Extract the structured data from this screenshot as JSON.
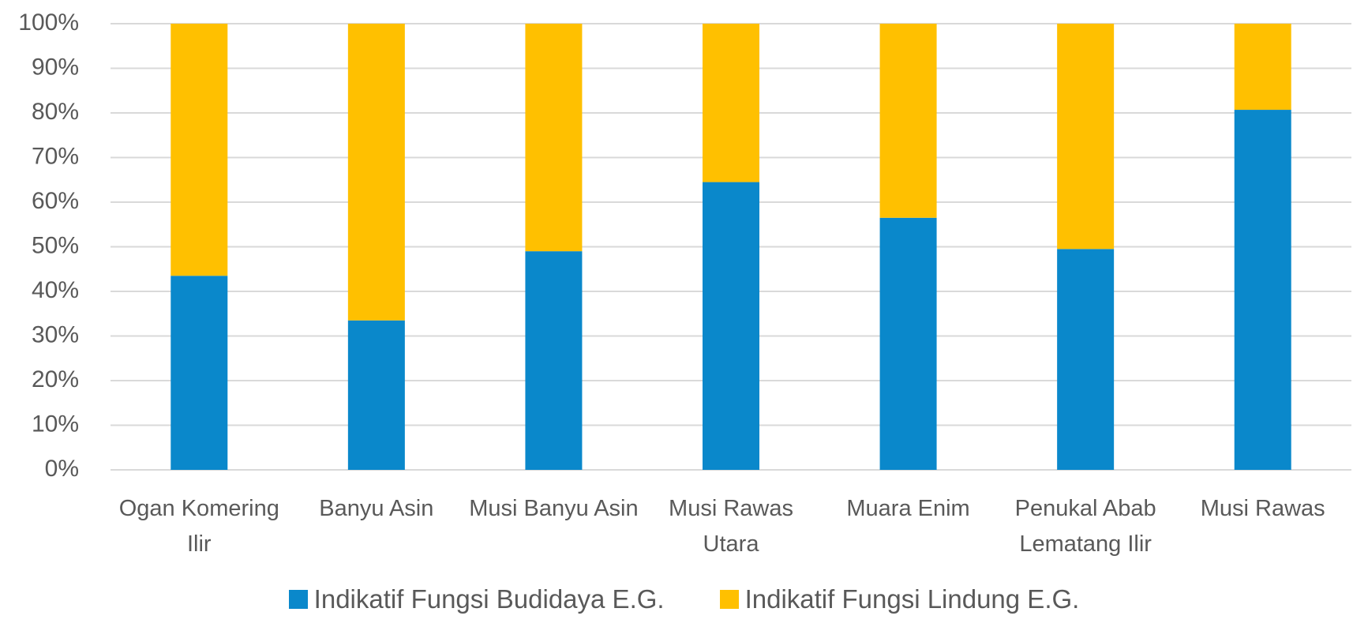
{
  "chart_data": {
    "type": "stacked_bar",
    "categories": [
      "Ogan Komering Ilir",
      "Banyu Asin",
      "Musi Banyu Asin",
      "Musi Rawas Utara",
      "Muara Enim",
      "Penukal Abab Lematang Ilir",
      "Musi Rawas"
    ],
    "series": [
      {
        "name": "Indikatif Fungsi Budidaya E.G.",
        "color": "#0a88cb",
        "values": [
          43.5,
          33.5,
          49,
          64.5,
          56.5,
          49.5,
          80.7
        ]
      },
      {
        "name": "Indikatif Fungsi Lindung E.G.",
        "color": "#ffc000",
        "values": [
          56.5,
          66.5,
          51,
          35.5,
          43.5,
          50.5,
          19.3
        ]
      }
    ],
    "ylim": [
      0,
      100
    ],
    "yticks": [
      {
        "value": 0,
        "label": "0%"
      },
      {
        "value": 10,
        "label": "10%"
      },
      {
        "value": 20,
        "label": "20%"
      },
      {
        "value": 30,
        "label": "30%"
      },
      {
        "value": 40,
        "label": "40%"
      },
      {
        "value": 50,
        "label": "50%"
      },
      {
        "value": 60,
        "label": "60%"
      },
      {
        "value": 70,
        "label": "70%"
      },
      {
        "value": 80,
        "label": "80%"
      },
      {
        "value": 90,
        "label": "90%"
      },
      {
        "value": 100,
        "label": "100%"
      }
    ],
    "grid": true,
    "legend": "bottom"
  }
}
